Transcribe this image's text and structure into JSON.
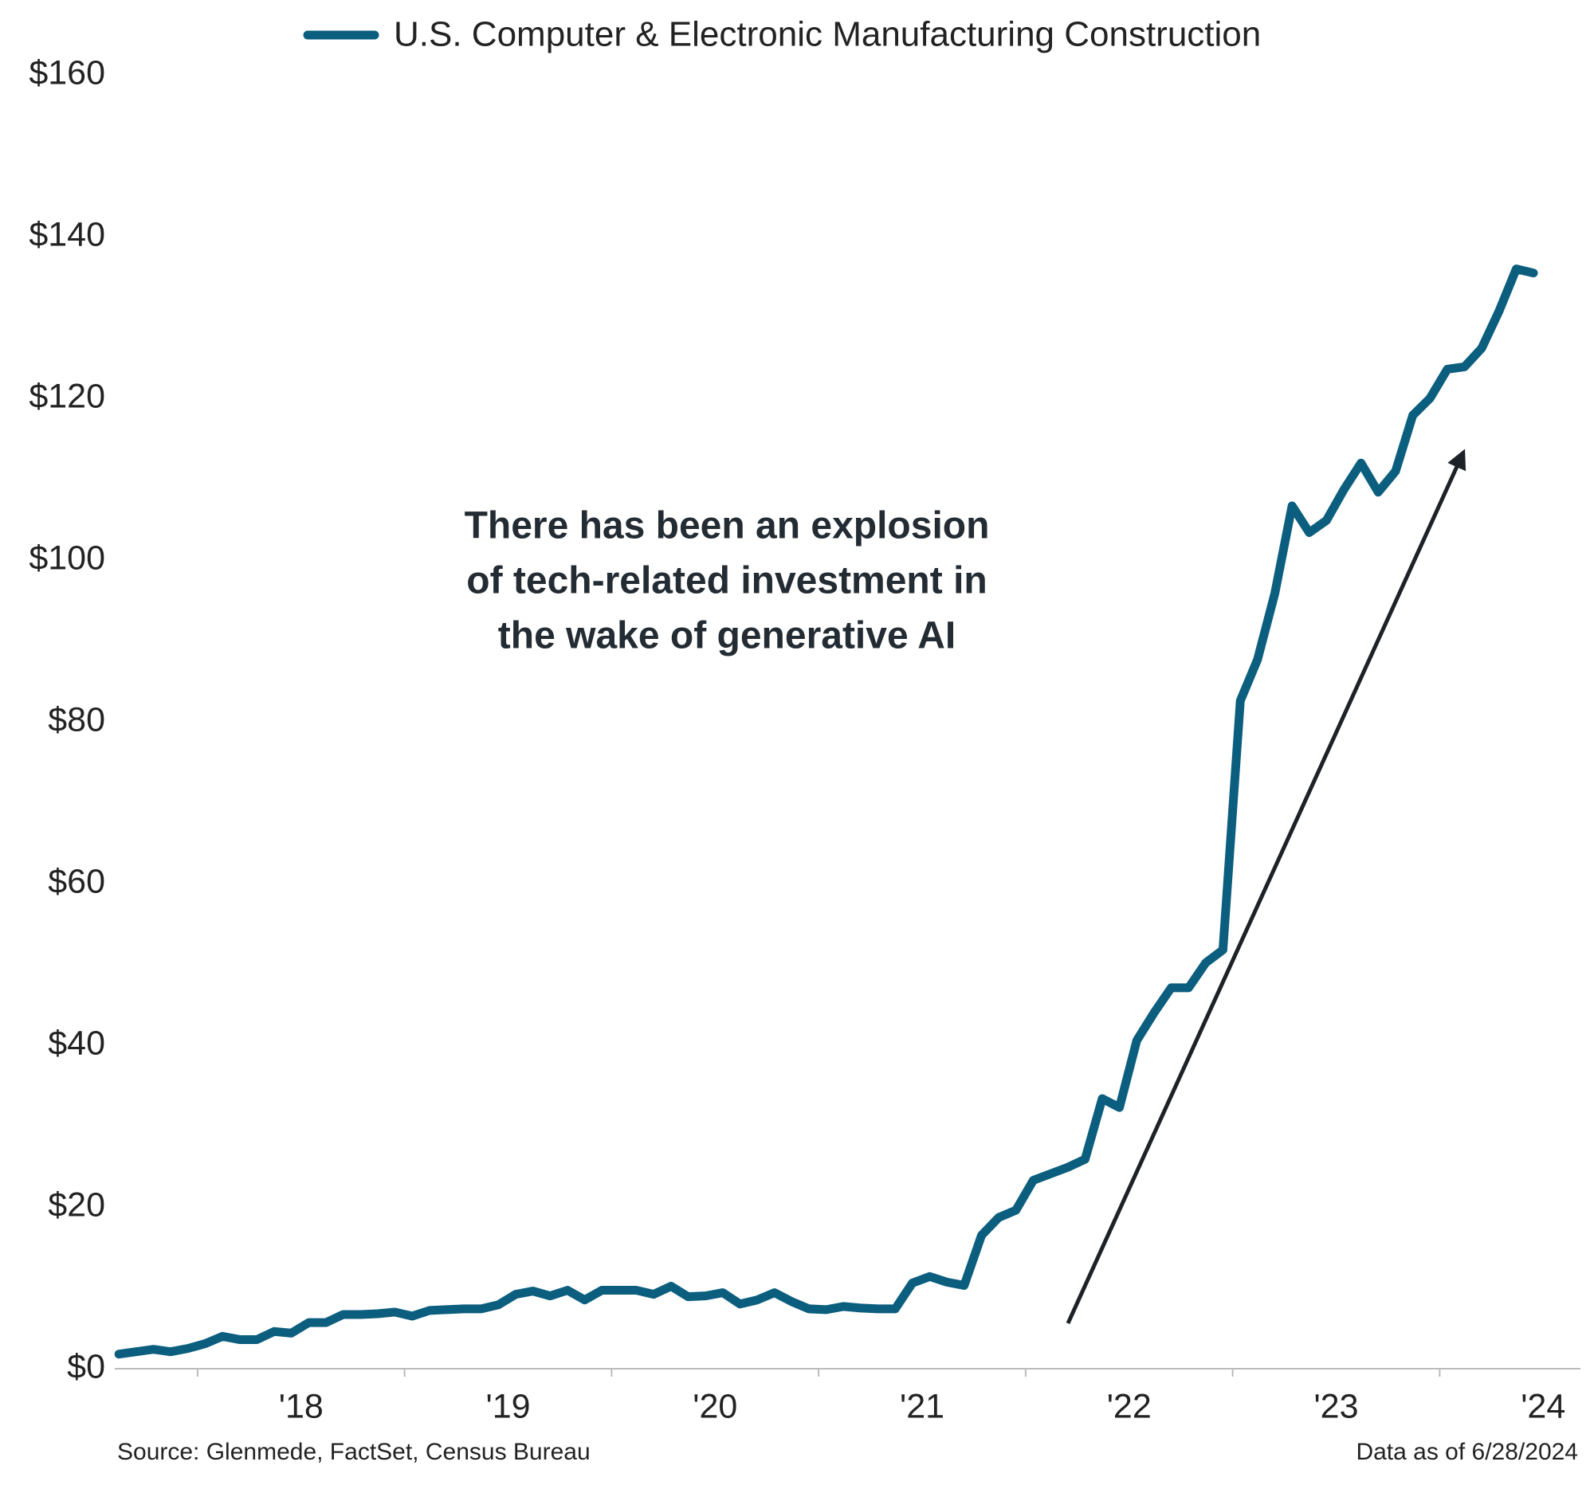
{
  "chart_data": {
    "type": "line",
    "series": [
      {
        "name": "U.S. Computer & Electronic Manufacturing Construction",
        "color": "#0b5e7e",
        "values": [
          1.8,
          2.1,
          2.4,
          2.1,
          2.5,
          3.1,
          4.0,
          3.6,
          3.6,
          4.6,
          4.4,
          5.7,
          5.7,
          6.7,
          6.7,
          6.8,
          7.0,
          6.5,
          7.2,
          7.3,
          7.4,
          7.4,
          7.9,
          9.2,
          9.6,
          9.0,
          9.7,
          8.5,
          9.7,
          9.7,
          9.7,
          9.2,
          10.2,
          8.9,
          9.0,
          9.4,
          8.0,
          8.5,
          9.4,
          8.3,
          7.4,
          7.3,
          7.7,
          7.5,
          7.4,
          7.4,
          10.6,
          11.4,
          10.7,
          10.3,
          16.5,
          18.7,
          19.6,
          23.3,
          24.1,
          24.9,
          25.9,
          33.4,
          32.3,
          40.6,
          44.0,
          47.1,
          47.1,
          50.2,
          51.8,
          82.6,
          87.7,
          95.8,
          106.7,
          103.4,
          104.9,
          108.7,
          112.0,
          108.4,
          111.0,
          117.9,
          120.0,
          123.6,
          123.9,
          126.2,
          130.8,
          136.0,
          135.5
        ]
      }
    ],
    "x": [
      2017.62,
      2017.703,
      2017.787,
      2017.87,
      2017.953,
      2018.037,
      2018.12,
      2018.203,
      2018.287,
      2018.37,
      2018.453,
      2018.537,
      2018.62,
      2018.703,
      2018.787,
      2018.87,
      2018.953,
      2019.037,
      2019.12,
      2019.203,
      2019.287,
      2019.37,
      2019.453,
      2019.537,
      2019.62,
      2019.703,
      2019.787,
      2019.87,
      2019.953,
      2020.037,
      2020.12,
      2020.203,
      2020.287,
      2020.37,
      2020.453,
      2020.537,
      2020.62,
      2020.703,
      2020.787,
      2020.87,
      2020.953,
      2021.037,
      2021.12,
      2021.203,
      2021.287,
      2021.37,
      2021.453,
      2021.537,
      2021.62,
      2021.703,
      2021.787,
      2021.87,
      2021.953,
      2022.037,
      2022.12,
      2022.203,
      2022.287,
      2022.37,
      2022.453,
      2022.537,
      2022.62,
      2022.703,
      2022.787,
      2022.87,
      2022.953,
      2023.037,
      2023.12,
      2023.203,
      2023.287,
      2023.37,
      2023.453,
      2023.537,
      2023.62,
      2023.703,
      2023.787,
      2023.87,
      2023.953,
      2024.037,
      2024.12,
      2024.203,
      2024.287,
      2024.37,
      2024.453
    ],
    "xlim": [
      2017.6,
      2024.68
    ],
    "xticks": [
      {
        "value": 2018.5,
        "label": "'18"
      },
      {
        "value": 2019.5,
        "label": "'19"
      },
      {
        "value": 2020.5,
        "label": "'20"
      },
      {
        "value": 2021.5,
        "label": "'21"
      },
      {
        "value": 2022.5,
        "label": "'22"
      },
      {
        "value": 2023.5,
        "label": "'23"
      },
      {
        "value": 2024.5,
        "label": "'24"
      }
    ],
    "xtick_marks": [
      2018,
      2019,
      2020,
      2021,
      2022,
      2023,
      2024
    ],
    "ylim": [
      0,
      160
    ],
    "yticks": [
      {
        "value": 0,
        "label": "$0"
      },
      {
        "value": 20,
        "label": "$20"
      },
      {
        "value": 40,
        "label": "$40"
      },
      {
        "value": 60,
        "label": "$60"
      },
      {
        "value": 80,
        "label": "$80"
      },
      {
        "value": 100,
        "label": "$100"
      },
      {
        "value": 120,
        "label": "$120"
      },
      {
        "value": 140,
        "label": "$140"
      },
      {
        "value": 160,
        "label": "$160"
      }
    ],
    "grid": false,
    "legend": "top",
    "annotation": [
      "There has been an explosion",
      "of tech-related investment in",
      "the wake of generative AI"
    ],
    "source": "Source: Glenmede, FactSet, Census Bureau",
    "note": "Data as of 6/28/2024"
  }
}
